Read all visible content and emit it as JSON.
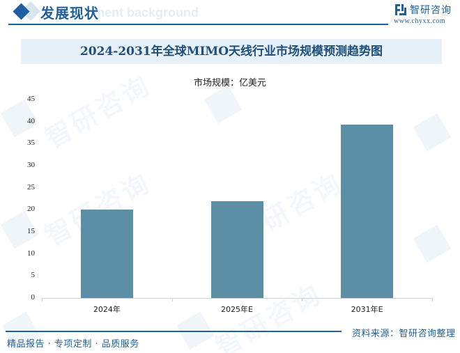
{
  "header": {
    "section_title": "发展现状",
    "section_bg_text": "ment background",
    "brand_name": "智研咨询",
    "brand_url": "www.chyxx.com"
  },
  "watermark_text": "智研咨询",
  "chart": {
    "title": "2024-2031年全球MIMO天线行业市场规模预测趋势图",
    "unit_label": "市场规模：亿美元"
  },
  "footer": {
    "source": "资料来源：智研咨询整理",
    "slogan": "精品报告 · 专项定制 · 品质服务"
  },
  "colors": {
    "bar": "#5b8fa6",
    "brand_blue": "#1f5f9a",
    "title_band": "#e5f0f8"
  },
  "chart_data": {
    "type": "bar",
    "title": "2024-2031年全球MIMO天线行业市场规模预测趋势图",
    "xlabel": "",
    "ylabel": "市场规模：亿美元",
    "categories": [
      "2024年",
      "2025年E",
      "2031年E"
    ],
    "values": [
      20.1,
      22.0,
      39.3
    ],
    "ylim": [
      0,
      45
    ],
    "yticks": [
      0,
      5,
      10,
      15,
      20,
      25,
      30,
      35,
      40,
      45
    ],
    "grid": false,
    "legend": null,
    "bar_color": "#5b8fa6"
  }
}
